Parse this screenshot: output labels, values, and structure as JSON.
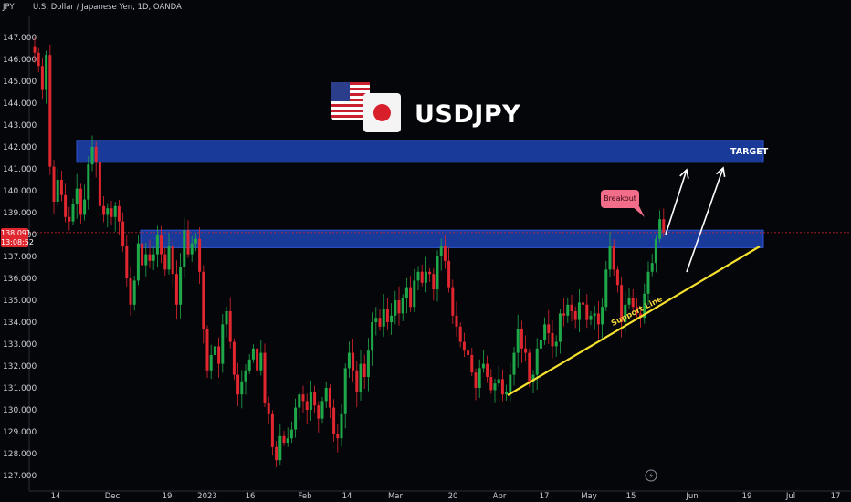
{
  "header": {
    "unit": "JPY",
    "instrument": "U.S. Dollar / Japanese Yen, 1D, OANDA"
  },
  "annotations": {
    "title": "USDJPY",
    "target": "TARGET",
    "breakout": "Breakout",
    "support": "Support Line"
  },
  "price_tag": {
    "price": "138.091",
    "countdown": "13:08:52"
  },
  "colors": {
    "background": "#05060a",
    "up_candle": "#1fa84a",
    "down_candle": "#e0262e",
    "zone": "#1a3a9a",
    "support_line": "#f5e22e",
    "price_line": "#e0262e"
  },
  "icons": [
    "us-flag-icon",
    "japan-flag-icon",
    "replay-icon"
  ],
  "chart_data": {
    "type": "candlestick",
    "ylim": [
      126.5,
      147.8
    ],
    "y_ticks": [
      "147.000",
      "146.000",
      "145.000",
      "144.000",
      "143.000",
      "142.000",
      "141.000",
      "140.000",
      "139.000",
      "138.000",
      "137.000",
      "136.000",
      "135.000",
      "134.000",
      "133.000",
      "132.000",
      "131.000",
      "130.000",
      "129.000",
      "128.000",
      "127.000"
    ],
    "x_ticks": [
      "14",
      "Dec",
      "19",
      "2023",
      "16",
      "Feb",
      "14",
      "Mar",
      "20",
      "Apr",
      "17",
      "May",
      "15",
      "Jun",
      "19",
      "Jul",
      "17"
    ],
    "last_price": 138.091,
    "target_zone": [
      141.3,
      142.3
    ],
    "resistance_zone": [
      137.4,
      138.2
    ],
    "closes": [
      146.3,
      145.7,
      144.6,
      146.2,
      141.1,
      139.5,
      140.5,
      139.8,
      138.8,
      138.6,
      139.4,
      140.1,
      138.9,
      139.6,
      141.2,
      142.0,
      141.3,
      139.3,
      138.9,
      139.2,
      138.8,
      139.3,
      138.6,
      137.5,
      136.0,
      134.8,
      135.9,
      137.6,
      136.6,
      137.1,
      136.8,
      137.1,
      138.0,
      137.1,
      136.4,
      137.5,
      136.2,
      134.8,
      136.5,
      138.2,
      137.1,
      137.6,
      137.8,
      136.3,
      133.7,
      131.8,
      132.5,
      132.9,
      132.1,
      133.9,
      134.5,
      133.1,
      131.6,
      130.7,
      131.3,
      131.8,
      132.3,
      132.8,
      131.8,
      132.6,
      130.3,
      129.8,
      128.3,
      127.7,
      128.8,
      128.5,
      128.7,
      129.1,
      130.1,
      130.7,
      130.4,
      130.0,
      130.8,
      130.2,
      129.6,
      130.4,
      131.0,
      130.1,
      128.9,
      128.7,
      129.8,
      131.9,
      132.6,
      131.8,
      130.8,
      132.1,
      131.5,
      132.7,
      134.0,
      134.2,
      133.8,
      134.6,
      134.0,
      134.3,
      135.0,
      134.4,
      135.1,
      135.6,
      134.7,
      135.9,
      136.3,
      135.8,
      136.3,
      136.2,
      135.5,
      137.0,
      137.5,
      136.8,
      135.6,
      134.3,
      133.8,
      133.1,
      132.7,
      132.5,
      131.7,
      131.0,
      131.9,
      132.1,
      131.5,
      130.9,
      131.2,
      131.4,
      130.7,
      130.8,
      131.6,
      132.6,
      133.7,
      132.8,
      132.6,
      131.3,
      131.6,
      132.8,
      133.2,
      133.9,
      133.5,
      132.9,
      133.1,
      134.4,
      134.3,
      134.8,
      134.5,
      134.1,
      134.9,
      134.8,
      134.1,
      134.3,
      134.4,
      133.9,
      134.7,
      136.4,
      137.5,
      136.4,
      135.7,
      134.0,
      134.8,
      135.1,
      134.7,
      134.4,
      134.2,
      135.3,
      136.3,
      136.7,
      137.8,
      138.7,
      138.1
    ]
  }
}
